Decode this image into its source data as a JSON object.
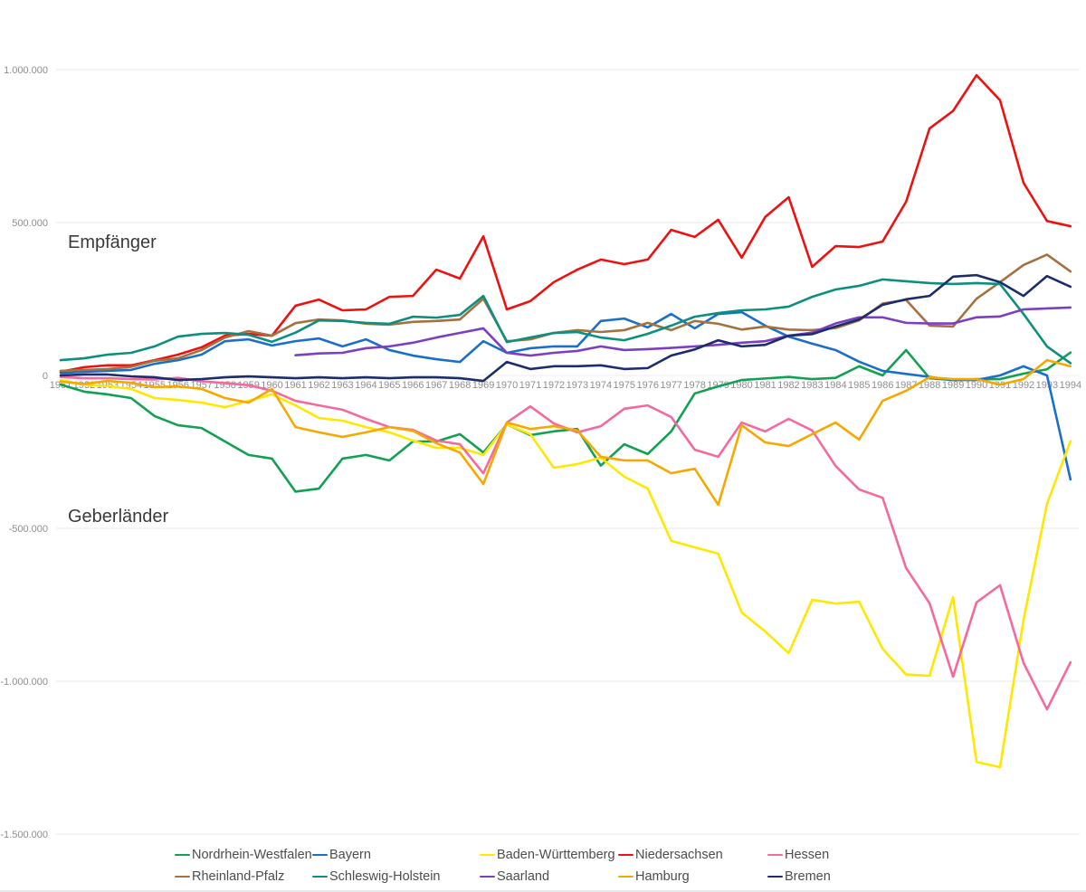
{
  "chart_data": {
    "type": "line",
    "title": "",
    "x": [
      1951,
      1952,
      1953,
      1954,
      1955,
      1956,
      1957,
      1958,
      1959,
      1960,
      1961,
      1962,
      1963,
      1964,
      1965,
      1966,
      1967,
      1968,
      1969,
      1970,
      1971,
      1972,
      1973,
      1974,
      1975,
      1976,
      1977,
      1978,
      1979,
      1980,
      1981,
      1982,
      1983,
      1984,
      1985,
      1986,
      1987,
      1988,
      1989,
      1990,
      1991,
      1992,
      1993,
      1994
    ],
    "ylim": [
      -1550000,
      1100000
    ],
    "grid": true,
    "legend_position": "bottom",
    "y_ticks": [
      {
        "value": 1000000,
        "label": "1.000.000"
      },
      {
        "value": 500000,
        "label": "500.000"
      },
      {
        "value": 0,
        "label": "0"
      },
      {
        "value": -500000,
        "label": "-500.000"
      },
      {
        "value": -1000000,
        "label": "-1.000.000"
      },
      {
        "value": -1500000,
        "label": "-1.500.000"
      }
    ],
    "annotations": [
      {
        "text": "Empfänger"
      },
      {
        "text": "Geberländer"
      }
    ],
    "series": [
      {
        "name": "Nordrhein-Westfalen",
        "color": "#12a152",
        "values": [
          -30000,
          -53000,
          -62000,
          -74000,
          -133000,
          -163000,
          -172000,
          -216000,
          -260000,
          -272000,
          -380000,
          -370000,
          -272000,
          -260000,
          -278000,
          -216000,
          -216000,
          -192000,
          -252000,
          -160000,
          -195000,
          -183000,
          -175000,
          -295000,
          -225000,
          -257000,
          -183000,
          -59000,
          -36000,
          -15000,
          -10000,
          -5000,
          -12000,
          -8000,
          30000,
          0,
          83000,
          -9000,
          -15000,
          -12000,
          -12000,
          6000,
          20000,
          75000
        ]
      },
      {
        "name": "Bayern",
        "color": "#1a6fc9",
        "values": [
          8000,
          12000,
          15000,
          18000,
          38000,
          50000,
          68000,
          112000,
          118000,
          98000,
          112000,
          121000,
          95000,
          118000,
          83000,
          65000,
          53000,
          44000,
          112000,
          74000,
          89000,
          95000,
          95000,
          178000,
          186000,
          157000,
          201000,
          154000,
          201000,
          207000,
          163000,
          127000,
          104000,
          83000,
          45000,
          15000,
          5000,
          -5000,
          -15000,
          -15000,
          0,
          30000,
          0,
          -340000
        ]
      },
      {
        "name": "Baden-Württemberg",
        "color": "#ffe800",
        "values": [
          -15000,
          -30000,
          -35000,
          -44000,
          -74000,
          -80000,
          -89000,
          -104000,
          -83000,
          -62000,
          -98000,
          -139000,
          -148000,
          -169000,
          -186000,
          -213000,
          -237000,
          -237000,
          -260000,
          -160000,
          -192000,
          -302000,
          -290000,
          -269000,
          -331000,
          -370000,
          -541000,
          -562000,
          -583000,
          -775000,
          -837000,
          -908000,
          -734000,
          -746000,
          -740000,
          -894000,
          -978000,
          -982000,
          -725000,
          -1264000,
          -1281000,
          -800000,
          -420000,
          -215000
        ]
      },
      {
        "name": "Niedersachsen",
        "color": "#ee1111",
        "values": [
          12000,
          27000,
          33000,
          33000,
          50000,
          68000,
          92000,
          130000,
          136000,
          130000,
          228000,
          248000,
          213000,
          216000,
          257000,
          260000,
          346000,
          317000,
          455000,
          216000,
          243000,
          305000,
          346000,
          379000,
          364000,
          379000,
          476000,
          453000,
          509000,
          385000,
          518000,
          583000,
          355000,
          423000,
          420000,
          438000,
          568000,
          808000,
          865000,
          982000,
          900000,
          630000,
          505000,
          488000
        ]
      },
      {
        "name": "Hessen",
        "color": "#f4699e",
        "values": [
          -5000,
          -9000,
          -9000,
          -12000,
          -13000,
          -8000,
          -19000,
          -25000,
          -32000,
          -50000,
          -83000,
          -98000,
          -112000,
          -142000,
          -169000,
          -178000,
          -213000,
          -225000,
          -320000,
          -154000,
          -101000,
          -157000,
          -186000,
          -166000,
          -109000,
          -98000,
          -136000,
          -243000,
          -266000,
          -154000,
          -183000,
          -142000,
          -180000,
          -296000,
          -373000,
          -400000,
          -630000,
          -745000,
          -985000,
          -742000,
          -686000,
          -940000,
          -1092000,
          -938000
        ]
      },
      {
        "name": "Rheinland-Pfalz",
        "color": "#a5713f",
        "values": [
          15000,
          18000,
          21000,
          28000,
          48000,
          56000,
          83000,
          124000,
          145000,
          130000,
          171000,
          183000,
          180000,
          169000,
          166000,
          175000,
          178000,
          183000,
          251000,
          112000,
          118000,
          139000,
          148000,
          142000,
          148000,
          172000,
          148000,
          178000,
          169000,
          150000,
          160000,
          150000,
          148000,
          155000,
          180000,
          235000,
          247000,
          163000,
          160000,
          251000,
          305000,
          361000,
          395000,
          340000
        ]
      },
      {
        "name": "Schleswig-Holstein",
        "color": "#0d8f80",
        "values": [
          50000,
          56000,
          68000,
          74000,
          95000,
          127000,
          136000,
          139000,
          133000,
          110000,
          140000,
          180000,
          178000,
          172000,
          169000,
          192000,
          189000,
          198000,
          260000,
          109000,
          124000,
          139000,
          142000,
          124000,
          115000,
          136000,
          163000,
          192000,
          204000,
          213000,
          216000,
          225000,
          257000,
          281000,
          293000,
          314000,
          308000,
          302000,
          299000,
          302000,
          299000,
          201000,
          95000,
          40000
        ]
      },
      {
        "name": "Saarland",
        "color": "#7d3fc1",
        "values": [
          null,
          null,
          null,
          null,
          null,
          null,
          null,
          null,
          null,
          null,
          66000,
          72000,
          74000,
          89000,
          95000,
          107000,
          124000,
          139000,
          154000,
          74000,
          65000,
          74000,
          80000,
          95000,
          83000,
          86000,
          90000,
          95000,
          100000,
          107000,
          112000,
          130000,
          140000,
          170000,
          190000,
          190000,
          172000,
          170000,
          170000,
          190000,
          193000,
          216000,
          219000,
          222000
        ]
      },
      {
        "name": "Hamburg",
        "color": "#f7a800",
        "values": [
          -20000,
          -28000,
          -18000,
          -24000,
          -38000,
          -36000,
          -44000,
          -74000,
          -89000,
          -44000,
          -169000,
          -186000,
          -201000,
          -186000,
          -169000,
          -181000,
          -222000,
          -252000,
          -355000,
          -154000,
          -175000,
          -166000,
          -180000,
          -266000,
          -278000,
          -278000,
          -320000,
          -305000,
          -423000,
          -163000,
          -219000,
          -231000,
          -192000,
          -154000,
          -210000,
          -83000,
          -50000,
          -6000,
          -12000,
          -12000,
          -30000,
          -12000,
          50000,
          30000
        ]
      },
      {
        "name": "Bremen",
        "color": "#1c2d6b",
        "values": [
          0,
          3000,
          3000,
          -3000,
          -6000,
          -15000,
          -12000,
          -6000,
          -3000,
          -6000,
          -9000,
          -6000,
          -9000,
          -6000,
          -9000,
          -6000,
          -6000,
          -9000,
          -18000,
          44000,
          21000,
          30000,
          30000,
          33000,
          21000,
          24000,
          65000,
          85000,
          115000,
          95000,
          100000,
          130000,
          135000,
          160000,
          183000,
          231000,
          249000,
          260000,
          323000,
          328000,
          305000,
          260000,
          325000,
          290000
        ]
      }
    ],
    "legend_rows": [
      [
        "Nordrhein-Westfalen",
        "Bayern",
        "Baden-Württemberg",
        "Niedersachsen",
        "Hessen"
      ],
      [
        "Rheinland-Pfalz",
        "Schleswig-Holstein",
        "Saarland",
        "Hamburg",
        "Bremen"
      ]
    ]
  }
}
